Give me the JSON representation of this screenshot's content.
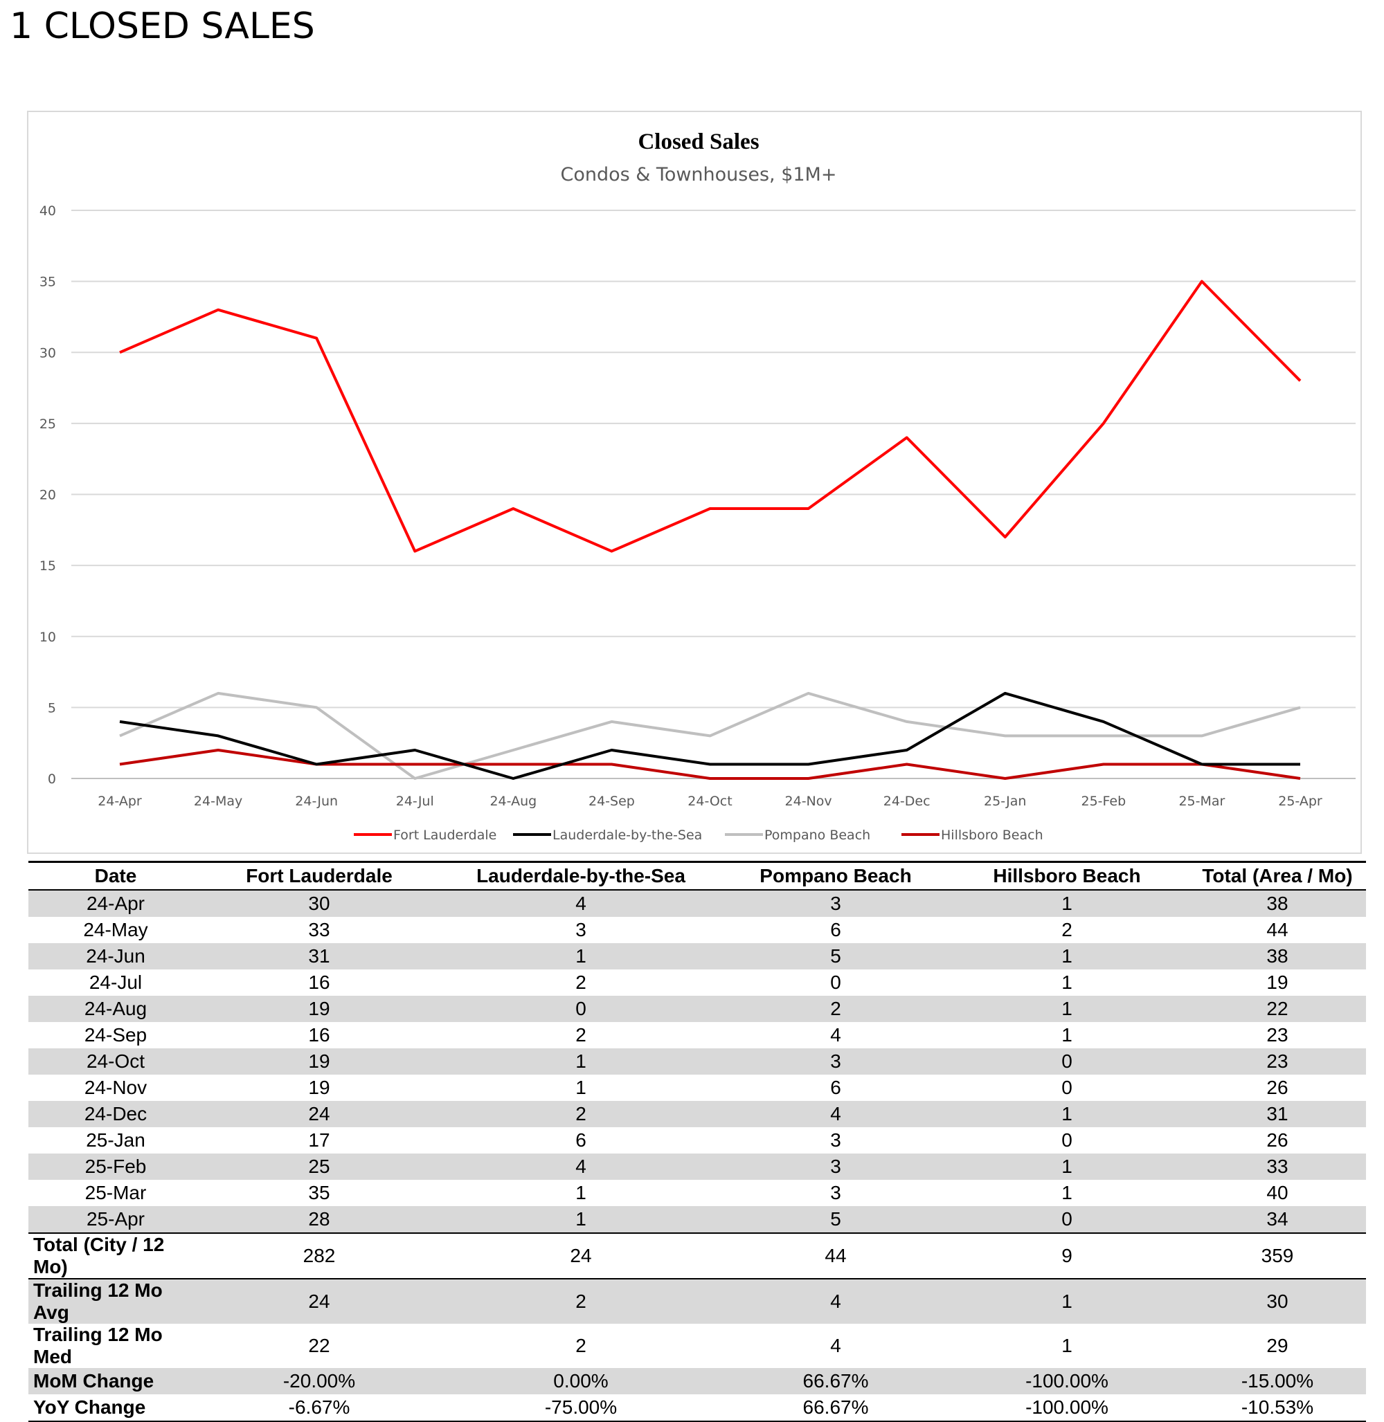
{
  "page": {
    "title": "1 CLOSED SALES"
  },
  "chart_data": {
    "type": "line",
    "title": "Closed Sales",
    "subtitle": "Condos & Townhouses, $1M+",
    "categories": [
      "24-Apr",
      "24-May",
      "24-Jun",
      "24-Jul",
      "24-Aug",
      "24-Sep",
      "24-Oct",
      "24-Nov",
      "24-Dec",
      "25-Jan",
      "25-Feb",
      "25-Mar",
      "25-Apr"
    ],
    "ylim": [
      0,
      40
    ],
    "yticks": [
      0,
      5,
      10,
      15,
      20,
      25,
      30,
      35,
      40
    ],
    "grid": true,
    "legend_position": "bottom",
    "series": [
      {
        "name": "Fort Lauderdale",
        "color": "#ff0000",
        "values": [
          30,
          33,
          31,
          16,
          19,
          16,
          19,
          19,
          24,
          17,
          25,
          35,
          28
        ]
      },
      {
        "name": "Lauderdale-by-the-Sea",
        "color": "#000000",
        "values": [
          4,
          3,
          1,
          2,
          0,
          2,
          1,
          1,
          2,
          6,
          4,
          1,
          1
        ]
      },
      {
        "name": "Pompano Beach",
        "color": "#bfbfbf",
        "values": [
          3,
          6,
          5,
          0,
          2,
          4,
          3,
          6,
          4,
          3,
          3,
          3,
          5
        ]
      },
      {
        "name": "Hillsboro Beach",
        "color": "#c00000",
        "values": [
          1,
          2,
          1,
          1,
          1,
          1,
          0,
          0,
          1,
          0,
          1,
          1,
          0
        ]
      }
    ]
  },
  "table": {
    "headers": [
      "Date",
      "Fort Lauderdale",
      "Lauderdale-by-the-Sea",
      "Pompano Beach",
      "Hillsboro Beach",
      "Total (Area / Mo)"
    ],
    "rows": [
      [
        "24-Apr",
        "30",
        "4",
        "3",
        "1",
        "38"
      ],
      [
        "24-May",
        "33",
        "3",
        "6",
        "2",
        "44"
      ],
      [
        "24-Jun",
        "31",
        "1",
        "5",
        "1",
        "38"
      ],
      [
        "24-Jul",
        "16",
        "2",
        "0",
        "1",
        "19"
      ],
      [
        "24-Aug",
        "19",
        "0",
        "2",
        "1",
        "22"
      ],
      [
        "24-Sep",
        "16",
        "2",
        "4",
        "1",
        "23"
      ],
      [
        "24-Oct",
        "19",
        "1",
        "3",
        "0",
        "23"
      ],
      [
        "24-Nov",
        "19",
        "1",
        "6",
        "0",
        "26"
      ],
      [
        "24-Dec",
        "24",
        "2",
        "4",
        "1",
        "31"
      ],
      [
        "25-Jan",
        "17",
        "6",
        "3",
        "0",
        "26"
      ],
      [
        "25-Feb",
        "25",
        "4",
        "3",
        "1",
        "33"
      ],
      [
        "25-Mar",
        "35",
        "1",
        "3",
        "1",
        "40"
      ],
      [
        "25-Apr",
        "28",
        "1",
        "5",
        "0",
        "34"
      ]
    ],
    "summary": [
      [
        "Total (City / 12 Mo)",
        "282",
        "24",
        "44",
        "9",
        "359"
      ],
      [
        "Trailing 12 Mo Avg",
        "24",
        "2",
        "4",
        "1",
        "30"
      ],
      [
        "Trailing 12 Mo Med",
        "22",
        "2",
        "4",
        "1",
        "29"
      ],
      [
        "MoM Change",
        "-20.00%",
        "0.00%",
        "66.67%",
        "-100.00%",
        "-15.00%"
      ],
      [
        "YoY Change",
        "-6.67%",
        "-75.00%",
        "66.67%",
        "-100.00%",
        "-10.53%"
      ]
    ]
  }
}
